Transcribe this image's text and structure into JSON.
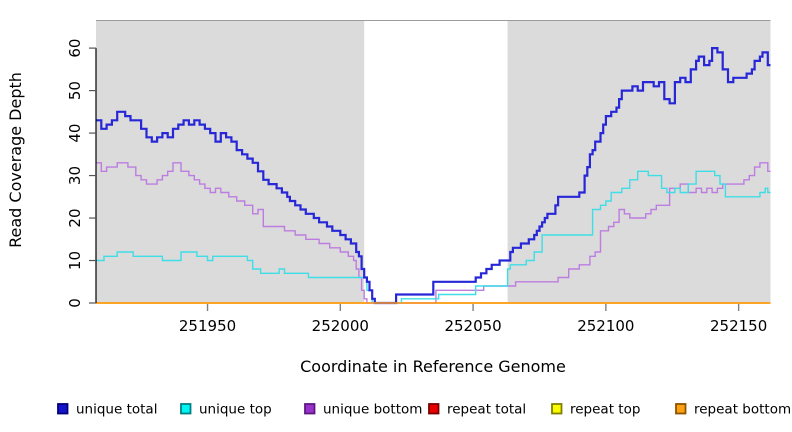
{
  "chart_data": {
    "type": "line",
    "subtype": "step-after",
    "title": "",
    "xlabel": "Coordinate in Reference Genome",
    "ylabel": "Read Coverage Depth",
    "xlim": [
      251908,
      252162
    ],
    "ylim": [
      0,
      66.5
    ],
    "xticks": [
      251950,
      252000,
      252050,
      252100,
      252150
    ],
    "yticks": [
      0,
      10,
      20,
      30,
      40,
      50,
      60
    ],
    "grid": false,
    "plot_bg_color": "#dbdbdb",
    "plot_top_border_color": "#9c9c9c",
    "highlight_region": {
      "x0": 252009,
      "x1": 252063,
      "color": "#ffffff"
    },
    "axis_colors": {
      "y_axis_line": "#000000",
      "x_tick": "#808080",
      "y_tick": "#555555"
    },
    "series": [
      {
        "name": "repeat total",
        "color": "#dd0000",
        "width": 1.4,
        "points": [
          [
            251908,
            0
          ],
          [
            252162,
            0
          ]
        ]
      },
      {
        "name": "repeat top",
        "color": "#fbfb00",
        "width": 1.4,
        "points": [
          [
            251908,
            0
          ],
          [
            252162,
            0
          ]
        ]
      },
      {
        "name": "unique bottom",
        "color": "#bd7de0",
        "width": 1.4,
        "points": [
          [
            251908,
            33
          ],
          [
            251910,
            31
          ],
          [
            251912,
            32
          ],
          [
            251916,
            33
          ],
          [
            251920,
            32
          ],
          [
            251923,
            30
          ],
          [
            251925,
            29
          ],
          [
            251927,
            28
          ],
          [
            251931,
            29
          ],
          [
            251933,
            30
          ],
          [
            251935,
            31
          ],
          [
            251937,
            33
          ],
          [
            251940,
            31
          ],
          [
            251943,
            30
          ],
          [
            251945,
            29
          ],
          [
            251947,
            28
          ],
          [
            251949,
            27
          ],
          [
            251951,
            26
          ],
          [
            251953,
            27
          ],
          [
            251955,
            26
          ],
          [
            251958,
            25
          ],
          [
            251961,
            24
          ],
          [
            251964,
            23
          ],
          [
            251967,
            21
          ],
          [
            251969,
            22
          ],
          [
            251971,
            18
          ],
          [
            251979,
            17
          ],
          [
            251983,
            16
          ],
          [
            251987,
            15
          ],
          [
            251992,
            14
          ],
          [
            251996,
            13
          ],
          [
            252000,
            12
          ],
          [
            252003,
            11
          ],
          [
            252005,
            10
          ],
          [
            252006,
            8
          ],
          [
            252007,
            6
          ],
          [
            252008,
            3
          ],
          [
            252009,
            1
          ],
          [
            252010,
            0
          ],
          [
            252036,
            3
          ],
          [
            252054,
            4
          ],
          [
            252066,
            5
          ],
          [
            252082,
            6
          ],
          [
            252086,
            8
          ],
          [
            252090,
            9
          ],
          [
            252094,
            11
          ],
          [
            252096,
            12
          ],
          [
            252098,
            17
          ],
          [
            252101,
            18
          ],
          [
            252103,
            19
          ],
          [
            252105,
            22
          ],
          [
            252107,
            21
          ],
          [
            252109,
            20
          ],
          [
            252115,
            21
          ],
          [
            252117,
            22
          ],
          [
            252119,
            23
          ],
          [
            252124,
            27
          ],
          [
            252128,
            28
          ],
          [
            252131,
            26
          ],
          [
            252134,
            27
          ],
          [
            252136,
            26
          ],
          [
            252138,
            27
          ],
          [
            252140,
            26
          ],
          [
            252142,
            27
          ],
          [
            252144,
            28
          ],
          [
            252152,
            29
          ],
          [
            252154,
            30
          ],
          [
            252156,
            32
          ],
          [
            252158,
            33
          ],
          [
            252161,
            31
          ]
        ]
      },
      {
        "name": "unique top",
        "color": "#3fdde6",
        "width": 1.4,
        "points": [
          [
            251908,
            10
          ],
          [
            251911,
            11
          ],
          [
            251916,
            12
          ],
          [
            251922,
            11
          ],
          [
            251933,
            10
          ],
          [
            251940,
            12
          ],
          [
            251946,
            11
          ],
          [
            251950,
            10
          ],
          [
            251952,
            11
          ],
          [
            251965,
            10
          ],
          [
            251967,
            8
          ],
          [
            251970,
            7
          ],
          [
            251977,
            8
          ],
          [
            251979,
            7
          ],
          [
            251988,
            6
          ],
          [
            252010,
            3
          ],
          [
            252012,
            0
          ],
          [
            252023,
            1
          ],
          [
            252037,
            2
          ],
          [
            252051,
            4
          ],
          [
            252063,
            8
          ],
          [
            252064,
            9
          ],
          [
            252070,
            10
          ],
          [
            252073,
            12
          ],
          [
            252076,
            16
          ],
          [
            252095,
            22
          ],
          [
            252098,
            23
          ],
          [
            252100,
            24
          ],
          [
            252102,
            26
          ],
          [
            252106,
            27
          ],
          [
            252109,
            29
          ],
          [
            252112,
            31
          ],
          [
            252116,
            30
          ],
          [
            252121,
            27
          ],
          [
            252123,
            26
          ],
          [
            252126,
            27
          ],
          [
            252128,
            26
          ],
          [
            252131,
            28
          ],
          [
            252134,
            31
          ],
          [
            252141,
            30
          ],
          [
            252143,
            28
          ],
          [
            252145,
            25
          ],
          [
            252158,
            26
          ],
          [
            252160,
            27
          ],
          [
            252161,
            26
          ]
        ]
      },
      {
        "name": "unique total",
        "color": "#2727d8",
        "width": 2.2,
        "points": [
          [
            251908,
            43
          ],
          [
            251910,
            41
          ],
          [
            251912,
            42
          ],
          [
            251914,
            43
          ],
          [
            251916,
            45
          ],
          [
            251919,
            44
          ],
          [
            251921,
            43
          ],
          [
            251925,
            41
          ],
          [
            251927,
            39
          ],
          [
            251929,
            38
          ],
          [
            251931,
            39
          ],
          [
            251933,
            40
          ],
          [
            251935,
            39
          ],
          [
            251937,
            41
          ],
          [
            251939,
            42
          ],
          [
            251941,
            43
          ],
          [
            251943,
            42
          ],
          [
            251945,
            43
          ],
          [
            251947,
            42
          ],
          [
            251949,
            41
          ],
          [
            251951,
            40
          ],
          [
            251953,
            38
          ],
          [
            251955,
            40
          ],
          [
            251957,
            39
          ],
          [
            251959,
            38
          ],
          [
            251961,
            36
          ],
          [
            251963,
            35
          ],
          [
            251965,
            34
          ],
          [
            251967,
            33
          ],
          [
            251969,
            31
          ],
          [
            251971,
            29
          ],
          [
            251973,
            28
          ],
          [
            251976,
            27
          ],
          [
            251978,
            26
          ],
          [
            251980,
            25
          ],
          [
            251981,
            24
          ],
          [
            251983,
            23
          ],
          [
            251985,
            22
          ],
          [
            251987,
            21
          ],
          [
            251990,
            20
          ],
          [
            251992,
            19
          ],
          [
            251995,
            18
          ],
          [
            251997,
            17
          ],
          [
            252000,
            16
          ],
          [
            252002,
            15
          ],
          [
            252004,
            14
          ],
          [
            252006,
            12
          ],
          [
            252007,
            11
          ],
          [
            252008,
            8
          ],
          [
            252009,
            6
          ],
          [
            252010,
            5
          ],
          [
            252011,
            3
          ],
          [
            252012,
            1
          ],
          [
            252013,
            0
          ],
          [
            252021,
            2
          ],
          [
            252035,
            5
          ],
          [
            252051,
            6
          ],
          [
            252053,
            7
          ],
          [
            252055,
            8
          ],
          [
            252057,
            9
          ],
          [
            252060,
            10
          ],
          [
            252064,
            12
          ],
          [
            252065,
            13
          ],
          [
            252068,
            14
          ],
          [
            252071,
            15
          ],
          [
            252073,
            16
          ],
          [
            252074,
            17
          ],
          [
            252075,
            18
          ],
          [
            252076,
            19
          ],
          [
            252077,
            20
          ],
          [
            252078,
            21
          ],
          [
            252081,
            23
          ],
          [
            252082,
            25
          ],
          [
            252090,
            26
          ],
          [
            252092,
            30
          ],
          [
            252093,
            32
          ],
          [
            252094,
            35
          ],
          [
            252095,
            36
          ],
          [
            252096,
            38
          ],
          [
            252098,
            40
          ],
          [
            252099,
            42
          ],
          [
            252100,
            44
          ],
          [
            252102,
            45
          ],
          [
            252104,
            46
          ],
          [
            252105,
            48
          ],
          [
            252106,
            50
          ],
          [
            252110,
            51
          ],
          [
            252112,
            50
          ],
          [
            252114,
            52
          ],
          [
            252118,
            51
          ],
          [
            252120,
            52
          ],
          [
            252122,
            48
          ],
          [
            252124,
            47
          ],
          [
            252126,
            52
          ],
          [
            252128,
            53
          ],
          [
            252130,
            52
          ],
          [
            252132,
            55
          ],
          [
            252134,
            57
          ],
          [
            252135,
            58
          ],
          [
            252137,
            56
          ],
          [
            252139,
            57
          ],
          [
            252140,
            60
          ],
          [
            252142,
            59
          ],
          [
            252144,
            55
          ],
          [
            252146,
            52
          ],
          [
            252148,
            53
          ],
          [
            252153,
            54
          ],
          [
            252155,
            55
          ],
          [
            252156,
            57
          ],
          [
            252158,
            58
          ],
          [
            252159,
            59
          ],
          [
            252161,
            56
          ]
        ]
      },
      {
        "name": "repeat bottom",
        "color": "#ff9d1f",
        "width": 1.6,
        "points": [
          [
            251908,
            0
          ],
          [
            252162,
            0
          ]
        ]
      }
    ],
    "legend": {
      "position": "bottom",
      "items": [
        {
          "label": "unique total",
          "fill": "#1414cc",
          "border": "#00007a"
        },
        {
          "label": "unique top",
          "fill": "#00f5f5",
          "border": "#008080"
        },
        {
          "label": "unique bottom",
          "fill": "#9932cc",
          "border": "#5c1a80"
        },
        {
          "label": "repeat total",
          "fill": "#e80000",
          "border": "#7a0000"
        },
        {
          "label": "repeat top",
          "fill": "#fbfb00",
          "border": "#808000"
        },
        {
          "label": "repeat bottom",
          "fill": "#ffa010",
          "border": "#8a5400"
        }
      ]
    }
  },
  "layout_values": {
    "legend_item_x": [
      58,
      181,
      305,
      429,
      552,
      676
    ],
    "legend_y": 404
  }
}
